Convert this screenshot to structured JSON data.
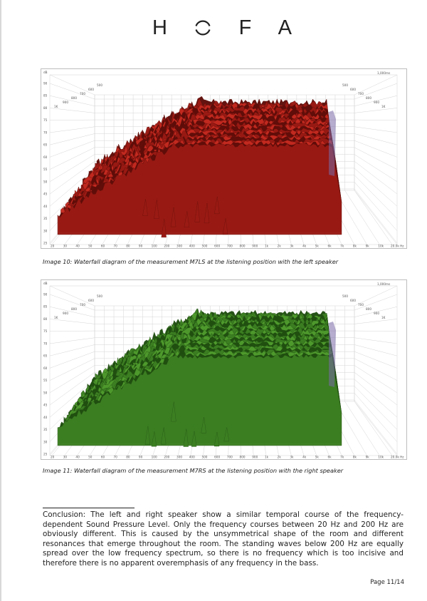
{
  "logo": {
    "letters": [
      "H",
      "O",
      "F",
      "A"
    ]
  },
  "figures": [
    {
      "id": "fig1",
      "color": "#9a1a14",
      "color_dark": "#5e0d09",
      "color_light": "#c42a20",
      "time_label": "1,000ms",
      "y_unit": "dB",
      "y_ticks": [
        "90",
        "85",
        "80",
        "75",
        "70",
        "65",
        "60",
        "55",
        "50",
        "45",
        "40",
        "35",
        "30",
        "25"
      ],
      "x_ticks": [
        "20",
        "30",
        "40",
        "50",
        "60",
        "70",
        "80",
        "90",
        "100",
        "200",
        "300",
        "400",
        "500",
        "600",
        "700",
        "800",
        "900",
        "1k",
        "2k",
        "3k",
        "4k",
        "5k",
        "6k",
        "7k",
        "8k",
        "9k",
        "10k",
        "20.0k Hz"
      ],
      "time_ticks_left": [
        "1K",
        "900",
        "800",
        "700",
        "600",
        "500"
      ],
      "time_ticks_right": [
        "1K",
        "900",
        "800",
        "700",
        "600",
        "500"
      ],
      "caption": "Image 10: Waterfall diagram of the measurement M7LS at the listening position with the left speaker"
    },
    {
      "id": "fig2",
      "color": "#3c7f22",
      "color_dark": "#1f4d10",
      "color_light": "#4f9a2d",
      "time_label": "1,000ms",
      "y_unit": "dB",
      "y_ticks": [
        "90",
        "85",
        "80",
        "75",
        "70",
        "65",
        "60",
        "55",
        "50",
        "45",
        "40",
        "35",
        "30",
        "25"
      ],
      "x_ticks": [
        "20",
        "30",
        "40",
        "50",
        "60",
        "70",
        "80",
        "90",
        "100",
        "200",
        "300",
        "400",
        "500",
        "600",
        "700",
        "800",
        "900",
        "1k",
        "2k",
        "3k",
        "4k",
        "5k",
        "6k",
        "7k",
        "8k",
        "9k",
        "10k",
        "20.0k Hz"
      ],
      "time_ticks_left": [
        "1K",
        "900",
        "800",
        "700",
        "600",
        "500"
      ],
      "time_ticks_right": [
        "1K",
        "900",
        "800",
        "700",
        "600",
        "500"
      ],
      "caption": "Image 11: Waterfall diagram of the measurement M7RS at the listening position with the right speaker"
    }
  ],
  "conclusion": "Conclusion: The left and right speaker show a similar temporal course of the frequency-dependent Sound Pressure Level. Only the frequency courses between 20 Hz and 200 Hz are obviously different. This is caused by the unsymmetrical shape of the room and different resonances that emerge throughout the room. The standing waves below 200 Hz are equally spread over the low frequency spectrum, so there is no frequency which is too incisive and therefore there is no apparent overemphasis of any frequency in the bass.",
  "page_number": "Page 11/14"
}
